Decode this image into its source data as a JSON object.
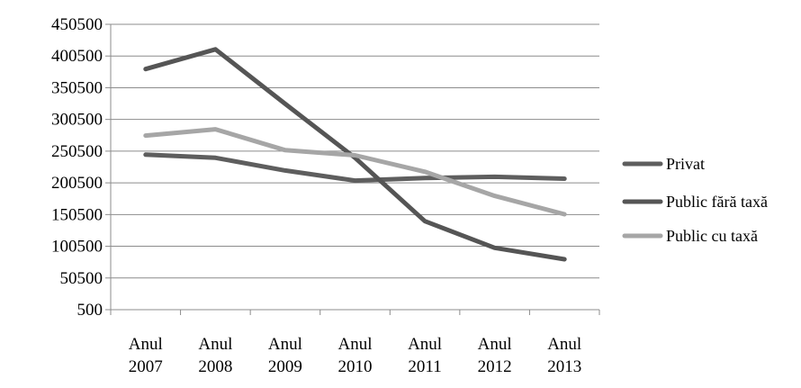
{
  "chart_data": {
    "type": "line",
    "title": "",
    "xlabel": "",
    "ylabel": "",
    "categories": [
      [
        "Anul",
        "2007"
      ],
      [
        "Anul",
        "2008"
      ],
      [
        "Anul",
        "2009"
      ],
      [
        "Anul",
        "2010"
      ],
      [
        "Anul",
        "2011"
      ],
      [
        "Anul",
        "2012"
      ],
      [
        "Anul",
        "2013"
      ]
    ],
    "ylim": [
      500,
      450500
    ],
    "yticks": [
      "500",
      "50500",
      "100500",
      "150500",
      "200500",
      "250500",
      "300500",
      "350500",
      "400500",
      "450500"
    ],
    "series": [
      {
        "name": "Privat",
        "color": "#5e5e5e",
        "values": [
          245000,
          240000,
          220000,
          204000,
          208000,
          210000,
          207000
        ]
      },
      {
        "name": "Public fără taxă",
        "color": "#555555",
        "values": [
          380000,
          411000,
          325000,
          240000,
          140000,
          98000,
          80000
        ]
      },
      {
        "name": "Public cu taxă",
        "color": "#a6a6a6",
        "values": [
          275000,
          285000,
          252000,
          244000,
          218000,
          180000,
          151000
        ]
      }
    ],
    "grid": true,
    "legend_position": "right"
  }
}
